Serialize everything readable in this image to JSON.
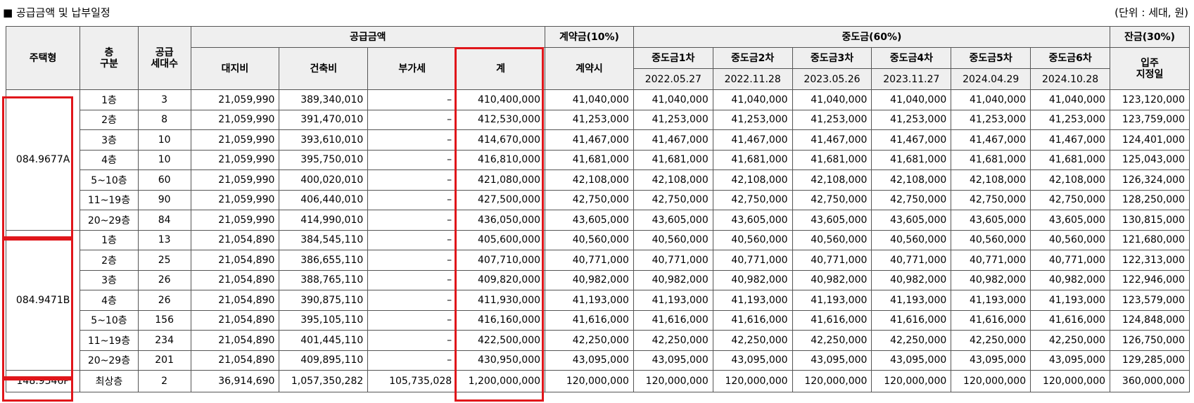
{
  "header": {
    "title": "■ 공급금액 및 납부일정",
    "unit": "(단위 : 세대, 원)"
  },
  "columns": {
    "type": "주택형",
    "floor": "층\n구분",
    "units": "공급\n세대수",
    "supply": "공급금액",
    "land": "대지비",
    "building": "건축비",
    "vat": "부가세",
    "total": "계",
    "contract": "계약금(10%)",
    "contract_sub": "계약시",
    "interim": "중도금(60%)",
    "interim_items": [
      {
        "label": "중도금1차",
        "date": "2022.05.27"
      },
      {
        "label": "중도금2차",
        "date": "2022.11.28"
      },
      {
        "label": "중도금3차",
        "date": "2023.05.26"
      },
      {
        "label": "중도금4차",
        "date": "2023.11.27"
      },
      {
        "label": "중도금5차",
        "date": "2024.04.29"
      },
      {
        "label": "중도금6차",
        "date": "2024.10.28"
      }
    ],
    "balance": "잔금(30%)",
    "balance_sub": "입주\n지정일"
  },
  "groups": [
    {
      "type": "084.9677A",
      "rows": [
        {
          "floor": "1층",
          "units": "3",
          "land": "21,059,990",
          "building": "389,340,010",
          "vat": "–",
          "total": "410,400,000",
          "contract": "41,040,000",
          "interim": [
            "41,040,000",
            "41,040,000",
            "41,040,000",
            "41,040,000",
            "41,040,000",
            "41,040,000"
          ],
          "balance": "123,120,000"
        },
        {
          "floor": "2층",
          "units": "8",
          "land": "21,059,990",
          "building": "391,470,010",
          "vat": "–",
          "total": "412,530,000",
          "contract": "41,253,000",
          "interim": [
            "41,253,000",
            "41,253,000",
            "41,253,000",
            "41,253,000",
            "41,253,000",
            "41,253,000"
          ],
          "balance": "123,759,000"
        },
        {
          "floor": "3층",
          "units": "10",
          "land": "21,059,990",
          "building": "393,610,010",
          "vat": "–",
          "total": "414,670,000",
          "contract": "41,467,000",
          "interim": [
            "41,467,000",
            "41,467,000",
            "41,467,000",
            "41,467,000",
            "41,467,000",
            "41,467,000"
          ],
          "balance": "124,401,000"
        },
        {
          "floor": "4층",
          "units": "10",
          "land": "21,059,990",
          "building": "395,750,010",
          "vat": "–",
          "total": "416,810,000",
          "contract": "41,681,000",
          "interim": [
            "41,681,000",
            "41,681,000",
            "41,681,000",
            "41,681,000",
            "41,681,000",
            "41,681,000"
          ],
          "balance": "125,043,000"
        },
        {
          "floor": "5~10층",
          "units": "60",
          "land": "21,059,990",
          "building": "400,020,010",
          "vat": "–",
          "total": "421,080,000",
          "contract": "42,108,000",
          "interim": [
            "42,108,000",
            "42,108,000",
            "42,108,000",
            "42,108,000",
            "42,108,000",
            "42,108,000"
          ],
          "balance": "126,324,000"
        },
        {
          "floor": "11~19층",
          "units": "90",
          "land": "21,059,990",
          "building": "406,440,010",
          "vat": "–",
          "total": "427,500,000",
          "contract": "42,750,000",
          "interim": [
            "42,750,000",
            "42,750,000",
            "42,750,000",
            "42,750,000",
            "42,750,000",
            "42,750,000"
          ],
          "balance": "128,250,000"
        },
        {
          "floor": "20~29층",
          "units": "84",
          "land": "21,059,990",
          "building": "414,990,010",
          "vat": "–",
          "total": "436,050,000",
          "contract": "43,605,000",
          "interim": [
            "43,605,000",
            "43,605,000",
            "43,605,000",
            "43,605,000",
            "43,605,000",
            "43,605,000"
          ],
          "balance": "130,815,000"
        }
      ]
    },
    {
      "type": "084.9471B",
      "rows": [
        {
          "floor": "1층",
          "units": "13",
          "land": "21,054,890",
          "building": "384,545,110",
          "vat": "–",
          "total": "405,600,000",
          "contract": "40,560,000",
          "interim": [
            "40,560,000",
            "40,560,000",
            "40,560,000",
            "40,560,000",
            "40,560,000",
            "40,560,000"
          ],
          "balance": "121,680,000"
        },
        {
          "floor": "2층",
          "units": "25",
          "land": "21,054,890",
          "building": "386,655,110",
          "vat": "–",
          "total": "407,710,000",
          "contract": "40,771,000",
          "interim": [
            "40,771,000",
            "40,771,000",
            "40,771,000",
            "40,771,000",
            "40,771,000",
            "40,771,000"
          ],
          "balance": "122,313,000"
        },
        {
          "floor": "3층",
          "units": "26",
          "land": "21,054,890",
          "building": "388,765,110",
          "vat": "–",
          "total": "409,820,000",
          "contract": "40,982,000",
          "interim": [
            "40,982,000",
            "40,982,000",
            "40,982,000",
            "40,982,000",
            "40,982,000",
            "40,982,000"
          ],
          "balance": "122,946,000"
        },
        {
          "floor": "4층",
          "units": "26",
          "land": "21,054,890",
          "building": "390,875,110",
          "vat": "–",
          "total": "411,930,000",
          "contract": "41,193,000",
          "interim": [
            "41,193,000",
            "41,193,000",
            "41,193,000",
            "41,193,000",
            "41,193,000",
            "41,193,000"
          ],
          "balance": "123,579,000"
        },
        {
          "floor": "5~10층",
          "units": "156",
          "land": "21,054,890",
          "building": "395,105,110",
          "vat": "–",
          "total": "416,160,000",
          "contract": "41,616,000",
          "interim": [
            "41,616,000",
            "41,616,000",
            "41,616,000",
            "41,616,000",
            "41,616,000",
            "41,616,000"
          ],
          "balance": "124,848,000"
        },
        {
          "floor": "11~19층",
          "units": "234",
          "land": "21,054,890",
          "building": "401,445,110",
          "vat": "–",
          "total": "422,500,000",
          "contract": "42,250,000",
          "interim": [
            "42,250,000",
            "42,250,000",
            "42,250,000",
            "42,250,000",
            "42,250,000",
            "42,250,000"
          ],
          "balance": "126,750,000"
        },
        {
          "floor": "20~29층",
          "units": "201",
          "land": "21,054,890",
          "building": "409,895,110",
          "vat": "–",
          "total": "430,950,000",
          "contract": "43,095,000",
          "interim": [
            "43,095,000",
            "43,095,000",
            "43,095,000",
            "43,095,000",
            "43,095,000",
            "43,095,000"
          ],
          "balance": "129,285,000"
        }
      ]
    },
    {
      "type": "148.9346P",
      "rows": [
        {
          "floor": "최상층",
          "units": "2",
          "land": "36,914,690",
          "building": "1,057,350,282",
          "vat": "105,735,028",
          "total": "1,200,000,000",
          "contract": "120,000,000",
          "interim": [
            "120,000,000",
            "120,000,000",
            "120,000,000",
            "120,000,000",
            "120,000,000",
            "120,000,000"
          ],
          "balance": "360,000,000"
        }
      ]
    }
  ],
  "colors": {
    "highlight": "#e0161b",
    "header_bg": "#efefef",
    "border": "#555555"
  }
}
